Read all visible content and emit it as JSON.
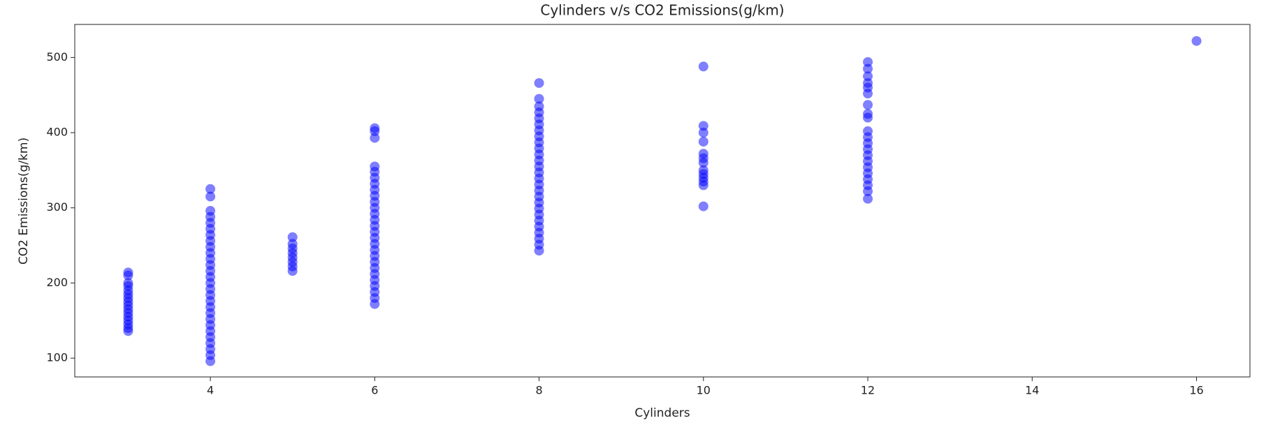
{
  "chart_data": {
    "type": "scatter",
    "title": "Cylinders v/s CO2 Emissions(g/km)",
    "xlabel": "Cylinders",
    "ylabel": "CO2 Emissions(g/km)",
    "color": "#0000ff",
    "xlim": [
      2.35,
      16.65
    ],
    "xticks": [
      4,
      6,
      8,
      10,
      12,
      14,
      16
    ],
    "ylim": [
      75,
      544
    ],
    "yticks": [
      100,
      200,
      300,
      400,
      500
    ],
    "x": [
      3,
      3,
      3,
      3,
      3,
      3,
      3,
      3,
      3,
      3,
      3,
      3,
      3,
      3,
      3,
      3,
      4,
      4,
      4,
      4,
      4,
      4,
      4,
      4,
      4,
      4,
      4,
      4,
      4,
      4,
      4,
      4,
      4,
      4,
      4,
      4,
      4,
      4,
      4,
      4,
      4,
      4,
      4,
      4,
      5,
      5,
      5,
      5,
      5,
      5,
      5,
      5,
      6,
      6,
      6,
      6,
      6,
      6,
      6,
      6,
      6,
      6,
      6,
      6,
      6,
      6,
      6,
      6,
      6,
      6,
      6,
      6,
      6,
      6,
      6,
      6,
      6,
      6,
      6,
      8,
      8,
      8,
      8,
      8,
      8,
      8,
      8,
      8,
      8,
      8,
      8,
      8,
      8,
      8,
      8,
      8,
      8,
      8,
      8,
      8,
      8,
      8,
      8,
      8,
      8,
      8,
      10,
      10,
      10,
      10,
      10,
      10,
      10,
      10,
      10,
      10,
      10,
      10,
      10,
      12,
      12,
      12,
      12,
      12,
      12,
      12,
      12,
      12,
      12,
      12,
      12,
      12,
      12,
      12,
      12,
      12,
      12,
      12,
      12,
      12,
      16
    ],
    "y": [
      136,
      140,
      145,
      150,
      155,
      160,
      165,
      170,
      175,
      180,
      185,
      190,
      196,
      200,
      210,
      214,
      96,
      104,
      112,
      120,
      128,
      136,
      144,
      152,
      160,
      168,
      176,
      184,
      192,
      200,
      208,
      216,
      224,
      232,
      240,
      248,
      256,
      264,
      272,
      280,
      288,
      296,
      315,
      325,
      216,
      222,
      228,
      234,
      240,
      246,
      252,
      261,
      172,
      180,
      188,
      196,
      204,
      212,
      220,
      228,
      236,
      244,
      252,
      260,
      268,
      276,
      284,
      292,
      300,
      308,
      316,
      324,
      332,
      340,
      348,
      355,
      393,
      402,
      406,
      243,
      251,
      259,
      267,
      275,
      283,
      291,
      299,
      307,
      315,
      323,
      331,
      339,
      347,
      355,
      363,
      371,
      379,
      387,
      395,
      403,
      411,
      419,
      427,
      435,
      445,
      466,
      302,
      330,
      335,
      340,
      345,
      350,
      360,
      366,
      372,
      388,
      400,
      409,
      488,
      312,
      322,
      330,
      338,
      346,
      354,
      362,
      370,
      378,
      386,
      394,
      402,
      420,
      425,
      437,
      452,
      460,
      466,
      475,
      485,
      494,
      522
    ]
  }
}
